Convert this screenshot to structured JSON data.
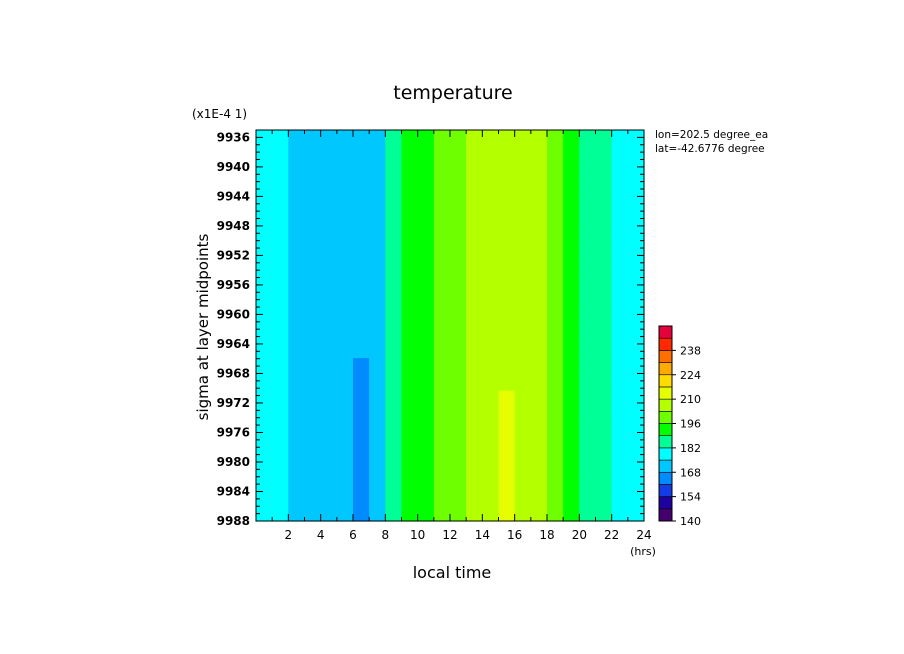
{
  "chart_data": {
    "type": "heatmap",
    "title": "temperature",
    "scale_note": "(x1E-4 1)",
    "xlabel": "local time",
    "xunit": "(hrs)",
    "ylabel": "sigma at layer midpoints",
    "annotations": [
      "lon=202.5 degree_ea",
      "lat=-42.6776 degree"
    ],
    "x_ticks": [
      2,
      4,
      6,
      8,
      10,
      12,
      14,
      16,
      18,
      20,
      22,
      24
    ],
    "y_ticks": [
      9936,
      9940,
      9944,
      9948,
      9952,
      9956,
      9960,
      9964,
      9968,
      9972,
      9976,
      9980,
      9984,
      9988
    ],
    "xlim": [
      0,
      24
    ],
    "ylim": [
      9988,
      9935
    ],
    "y_direction": "reversed",
    "colorbar": {
      "ticks": [
        140,
        154,
        168,
        182,
        196,
        210,
        224,
        238
      ],
      "range": [
        140,
        252
      ],
      "levels": [
        140,
        147,
        154,
        161,
        168,
        175,
        182,
        189,
        196,
        203,
        210,
        217,
        224,
        231,
        238,
        245,
        252
      ]
    },
    "sigma_levels": [
      9935,
      9988
    ],
    "times": [
      0.5,
      1.5,
      2.5,
      3.5,
      4.5,
      5.5,
      6.5,
      7.5,
      8.5,
      9.5,
      10.5,
      11.5,
      12.5,
      13.5,
      14.5,
      15.5,
      16.5,
      17.5,
      18.5,
      19.5,
      20.5,
      21.5,
      22.5,
      23.5
    ],
    "values": [
      [
        177,
        176,
        174,
        172,
        171,
        171,
        171,
        174,
        183,
        189,
        193,
        197,
        201,
        204,
        207,
        208,
        208,
        205,
        199,
        192,
        187,
        183,
        181,
        179
      ],
      [
        176,
        175,
        173,
        171,
        170,
        168,
        166,
        173,
        184,
        190,
        194,
        198,
        202,
        205,
        209,
        211,
        210,
        205,
        199,
        192,
        187,
        183,
        180,
        178
      ]
    ],
    "grid": false
  }
}
